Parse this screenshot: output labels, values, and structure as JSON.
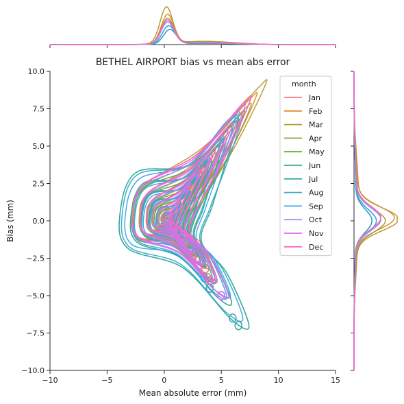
{
  "chart_data": {
    "type": "line",
    "subtype": "bivariate kde contour joint plot with marginal kde curves",
    "title": "BETHEL AIRPORT bias vs mean abs error",
    "xlabel": "Mean absolute error (mm)",
    "ylabel": "Bias (mm)",
    "xlim": [
      -10,
      15
    ],
    "ylim": [
      -10,
      10
    ],
    "xticks": [
      "−10",
      "−5",
      "0",
      "5",
      "10",
      "15"
    ],
    "yticks": [
      "−10.0",
      "−7.5",
      "−5.0",
      "−2.5",
      "0.0",
      "2.5",
      "5.0",
      "7.5",
      "10.0"
    ],
    "grid": false,
    "legend": {
      "title": "month",
      "placement": "upper-right"
    },
    "series": [
      {
        "name": "Jan",
        "color": "#f77189",
        "center": [
          0.3,
          0.2
        ],
        "tail": [
          [
            3.0,
            -2.5
          ],
          [
            4.0,
            -4.0
          ]
        ],
        "peak_x": 0.13,
        "peak_y": 0.6
      },
      {
        "name": "Feb",
        "color": "#e08a31",
        "center": [
          0.3,
          0.2
        ],
        "tail": [
          [
            2.0,
            -1.8
          ],
          [
            3.6,
            -3.2
          ]
        ],
        "peak_x": 0.16,
        "peak_y": 0.9
      },
      {
        "name": "Mar",
        "color": "#bb9832",
        "center": [
          0.2,
          0.1
        ],
        "tail": [
          [
            2.5,
            -2.0
          ],
          [
            3.0,
            -3.0
          ]
        ],
        "peak_x": 0.2,
        "peak_y": 1.0
      },
      {
        "name": "Apr",
        "color": "#97a431",
        "center": [
          0.3,
          0.0
        ],
        "tail": [
          [
            2.8,
            -2.5
          ],
          [
            3.8,
            -3.8
          ]
        ],
        "peak_x": 0.14,
        "peak_y": 0.7
      },
      {
        "name": "May",
        "color": "#50b131",
        "center": [
          0.4,
          0.0
        ],
        "tail": [
          [
            2.2,
            -2.0
          ],
          [
            3.0,
            -3.0
          ]
        ],
        "peak_x": 0.1,
        "peak_y": 0.5
      },
      {
        "name": "Jun",
        "color": "#34af84",
        "center": [
          0.5,
          0.0
        ],
        "tail": [
          [
            4.0,
            -4.5
          ],
          [
            6.5,
            -7.0
          ]
        ],
        "peak_x": 0.08,
        "peak_y": 0.4
      },
      {
        "name": "Jul",
        "color": "#36ada4",
        "center": [
          0.5,
          0.0
        ],
        "tail": [
          [
            4.0,
            -4.5
          ],
          [
            6.5,
            -7.0
          ]
        ],
        "peak_x": 0.08,
        "peak_y": 0.4
      },
      {
        "name": "Aug",
        "color": "#38a9c5",
        "center": [
          0.5,
          0.0
        ],
        "tail": [
          [
            4.0,
            -4.5
          ],
          [
            6.0,
            -6.5
          ]
        ],
        "peak_x": 0.08,
        "peak_y": 0.4
      },
      {
        "name": "Sep",
        "color": "#3ba3ec",
        "center": [
          0.4,
          0.0
        ],
        "tail": [
          [
            3.5,
            -3.8
          ],
          [
            5.0,
            -5.0
          ]
        ],
        "peak_x": 0.1,
        "peak_y": 0.5
      },
      {
        "name": "Oct",
        "color": "#a48cf4",
        "center": [
          0.3,
          0.1
        ],
        "tail": [
          [
            3.0,
            -3.0
          ],
          [
            5.0,
            -5.0
          ]
        ],
        "peak_x": 0.12,
        "peak_y": 0.6
      },
      {
        "name": "Nov",
        "color": "#e866f4",
        "center": [
          0.3,
          0.2
        ],
        "tail": [
          [
            3.0,
            -3.0
          ],
          [
            5.0,
            -5.0
          ]
        ],
        "peak_x": 0.13,
        "peak_y": 0.6
      },
      {
        "name": "Dec",
        "color": "#f668c2",
        "center": [
          0.3,
          0.2
        ],
        "tail": [
          [
            2.5,
            -2.5
          ],
          [
            4.0,
            -4.0
          ]
        ],
        "peak_x": 0.13,
        "peak_y": 0.6
      }
    ]
  }
}
